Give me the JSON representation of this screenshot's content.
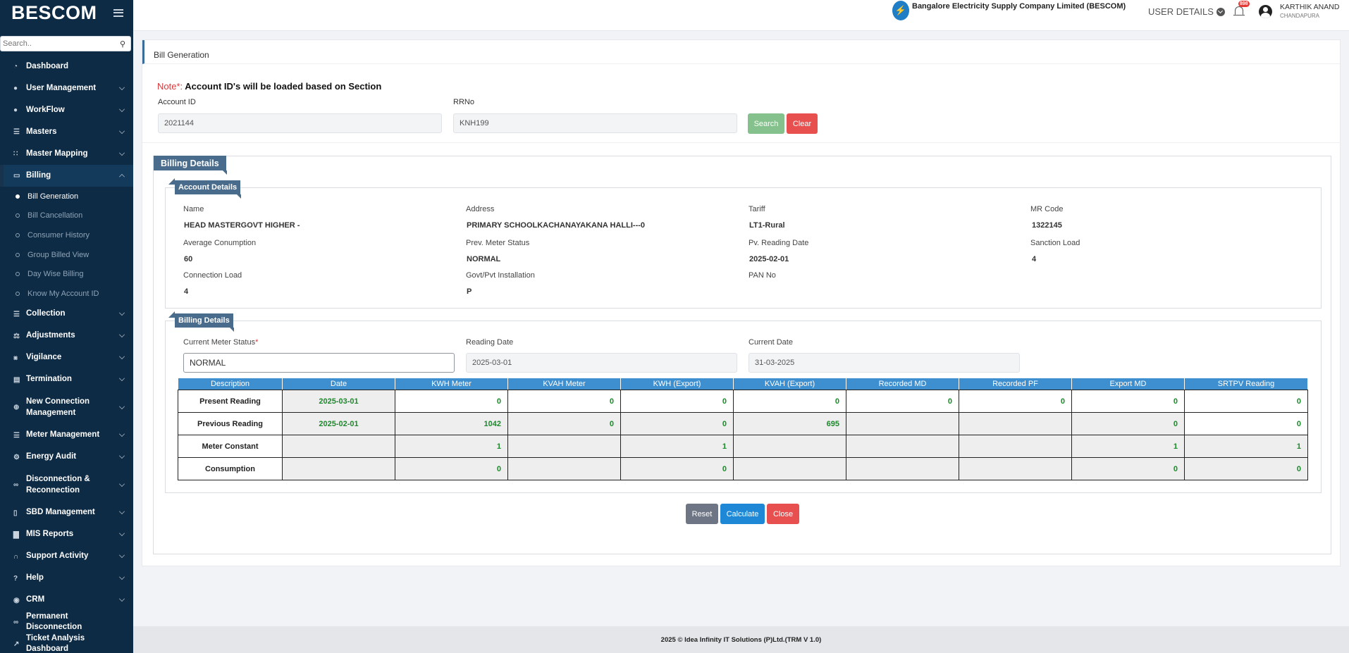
{
  "app": {
    "brand": "BESCOM",
    "search_placeholder": "Search..",
    "org_name": "Bangalore Electricity Supply Company Limited (BESCOM)",
    "user_details_label": "USER DETAILS",
    "notification_count": "898",
    "user_name": "KARTHIK ANAND",
    "user_location": "CHANDAPURA"
  },
  "sidebar": {
    "items": [
      {
        "label": "Dashboard",
        "icon": "dashboard-icon"
      },
      {
        "label": "User Management",
        "icon": "user-icon"
      },
      {
        "label": "WorkFlow",
        "icon": "user-icon"
      },
      {
        "label": "Masters",
        "icon": "list-icon"
      },
      {
        "label": "Master Mapping",
        "icon": "sitemap-icon"
      },
      {
        "label": "Billing",
        "icon": "monitor-icon"
      },
      {
        "label": "Collection",
        "icon": "list-icon"
      },
      {
        "label": "Adjustments",
        "icon": "scale-icon"
      },
      {
        "label": "Vigilance",
        "icon": "vk-icon"
      },
      {
        "label": "Termination",
        "icon": "trash-icon"
      },
      {
        "label": "New Connection Management",
        "icon": "plus-circle-icon"
      },
      {
        "label": "Meter Management",
        "icon": "list-icon"
      },
      {
        "label": "Energy Audit",
        "icon": "gears-icon"
      },
      {
        "label": "Disconnection & Reconnection",
        "icon": "link-icon"
      },
      {
        "label": "SBD Management",
        "icon": "mobile-icon"
      },
      {
        "label": "MIS Reports",
        "icon": "chart-icon"
      },
      {
        "label": "Support Activity",
        "icon": "headset-icon"
      },
      {
        "label": "Help",
        "icon": "help-icon"
      },
      {
        "label": "CRM",
        "icon": "crm-icon"
      },
      {
        "label": "Permanent Disconnection",
        "icon": "link-icon"
      },
      {
        "label": "Ticket Analysis Dashboard",
        "icon": "chart-line-icon"
      }
    ],
    "billing_sub": [
      "Bill Generation",
      "Bill Cancellation",
      "Consumer History",
      "Group Billed View",
      "Day Wise Billing",
      "Know My Account ID"
    ]
  },
  "page": {
    "breadcrumb": "Bill Generation",
    "note_prefix": "Note",
    "note_star": "*:",
    "note_text": " Account ID's will be loaded based on Section",
    "account_id_label": "Account ID",
    "account_id_value": "2021144",
    "rrno_label": "RRNo",
    "rrno_value": "KNH199",
    "search_btn": "Search",
    "clear_btn": "Clear",
    "billing_details_title": "Billing Details",
    "account_details_title": "Account Details",
    "billing_details_sub_title": "Billing Details"
  },
  "account": {
    "name_label": "Name",
    "name_value": "HEAD MASTERGOVT HIGHER -",
    "address_label": "Address",
    "address_value": "PRIMARY SCHOOLKACHANAYAKANA HALLI---0",
    "tariff_label": "Tariff",
    "tariff_value": "LT1-Rural",
    "mrcode_label": "MR Code",
    "mrcode_value": "1322145",
    "avg_label": "Average Conumption",
    "avg_value": "60",
    "prev_status_label": "Prev. Meter Status",
    "prev_status_value": "NORMAL",
    "pv_date_label": "Pv. Reading Date",
    "pv_date_value": "2025-02-01",
    "sanction_label": "Sanction Load",
    "sanction_value": "4",
    "conn_label": "Connection Load",
    "conn_value": "4",
    "govt_label": "Govt/Pvt Installation",
    "govt_value": "P",
    "pan_label": "PAN No"
  },
  "billing": {
    "meter_status_label": "Current Meter Status",
    "meter_status_star": "*",
    "meter_status_value": "NORMAL",
    "reading_date_label": "Reading Date",
    "reading_date_value": "2025-03-01",
    "current_date_label": "Current Date",
    "current_date_value": "31-03-2025"
  },
  "table": {
    "headers": [
      "Description",
      "Date",
      "KWH Meter",
      "KVAH Meter",
      "KWH (Export)",
      "KVAH (Export)",
      "Recorded MD",
      "Recorded PF",
      "Export MD",
      "SRTPV Reading"
    ],
    "rows": [
      {
        "cells": [
          "Present Reading",
          "2025-03-01",
          "0",
          "0",
          "0",
          "0",
          "0",
          "0",
          "0",
          "0"
        ],
        "bg": [
          "w",
          "d",
          "w",
          "w",
          "w",
          "w",
          "w",
          "w",
          "w",
          "w"
        ]
      },
      {
        "cells": [
          "Previous Reading",
          "2025-02-01",
          "1042",
          "0",
          "0",
          "695",
          "",
          "",
          "0",
          "0"
        ],
        "bg": [
          "w",
          "d",
          "g",
          "g",
          "g",
          "g",
          "g",
          "g",
          "g",
          "w"
        ]
      },
      {
        "cells": [
          "Meter Constant",
          "",
          "1",
          "",
          "1",
          "",
          "",
          "",
          "1",
          "1"
        ],
        "bg": [
          "w",
          "d",
          "g",
          "g",
          "g",
          "g",
          "g",
          "g",
          "g",
          "g"
        ]
      },
      {
        "cells": [
          "Consumption",
          "",
          "0",
          "",
          "0",
          "",
          "",
          "",
          "0",
          "0"
        ],
        "bg": [
          "w",
          "d",
          "g",
          "g",
          "g",
          "g",
          "g",
          "g",
          "g",
          "g"
        ]
      }
    ]
  },
  "actions": {
    "reset": "Reset",
    "calculate": "Calculate",
    "close": "Close"
  },
  "footer": {
    "text": "2025 © Idea Infinity IT Solutions (P)Ltd.(TRM V 1.0)"
  }
}
